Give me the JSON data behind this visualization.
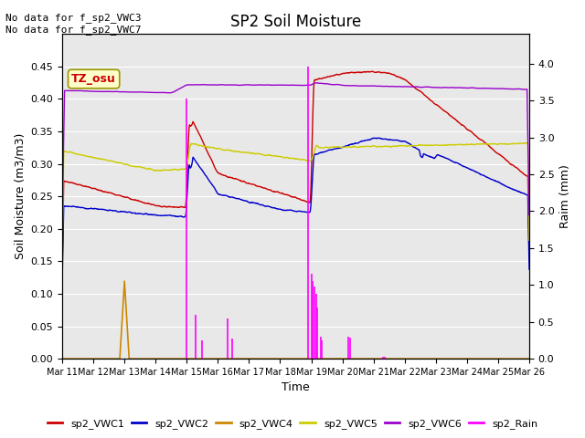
{
  "title": "SP2 Soil Moisture",
  "ylabel_left": "Soil Moisture (m3/m3)",
  "ylabel_right": "Raim (mm)",
  "xlabel": "Time",
  "no_data_text": "No data for f_sp2_VWC3\nNo data for f_sp2_VWC7",
  "tz_label": "TZ_osu",
  "ylim_left": [
    0.0,
    0.5
  ],
  "ylim_right": [
    0.0,
    4.4
  ],
  "xlim": [
    0,
    15
  ],
  "yticks_left": [
    0.0,
    0.05,
    0.1,
    0.15,
    0.2,
    0.25,
    0.3,
    0.35,
    0.4,
    0.45
  ],
  "yticks_right": [
    0.0,
    0.5,
    1.0,
    1.5,
    2.0,
    2.5,
    3.0,
    3.5,
    4.0
  ],
  "x_tick_labels": [
    "Mar 11",
    "Mar 12",
    "Mar 13",
    "Mar 14",
    "Mar 15",
    "Mar 16",
    "Mar 17",
    "Mar 18",
    "Mar 19",
    "Mar 20",
    "Mar 21",
    "Mar 22",
    "Mar 23",
    "Mar 24",
    "Mar 25",
    "Mar 26"
  ],
  "colors": {
    "vwc1": "#cc0000",
    "vwc2": "#0000cc",
    "vwc4": "#cc8800",
    "vwc5": "#cccc00",
    "vwc6": "#9900cc",
    "rain": "#ff00ff"
  },
  "background_color": "#e8e8e8",
  "grid_color": "#ffffff",
  "fig_color": "#ffffff"
}
